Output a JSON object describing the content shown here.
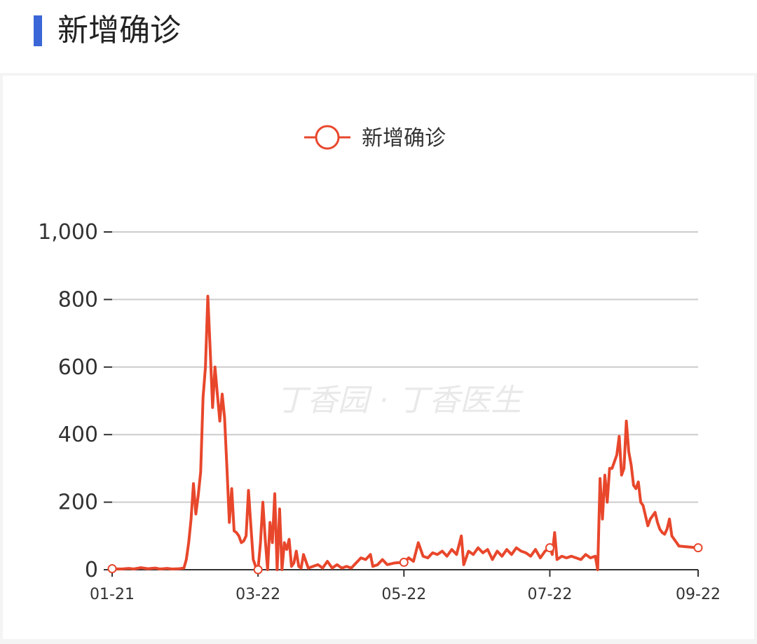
{
  "header": {
    "title": "新增确诊"
  },
  "watermark": "丁香园 · 丁香医生",
  "colors": {
    "accent_bar": "#3b66d8",
    "series": "#e8472c",
    "grid": "#cccccc"
  },
  "chart_data": {
    "type": "line",
    "title": "",
    "legend": {
      "entries": [
        "新增确诊"
      ],
      "placement": "top-center"
    },
    "xlabel": "",
    "ylabel": "",
    "x_range": [
      "01-21",
      "09-22"
    ],
    "x_ticks": [
      "01-21",
      "03-22",
      "05-22",
      "07-22",
      "09-22"
    ],
    "ylim": [
      0,
      1000
    ],
    "y_ticks": [
      "0",
      "200",
      "400",
      "600",
      "800",
      "1,000"
    ],
    "grid": true,
    "series": [
      {
        "name": "新增确诊",
        "color": "#e8472c",
        "points": [
          [
            "01-21",
            3
          ],
          [
            "01-25",
            2
          ],
          [
            "01-28",
            4
          ],
          [
            "01-30",
            2
          ],
          [
            "02-02",
            6
          ],
          [
            "02-05",
            3
          ],
          [
            "02-08",
            5
          ],
          [
            "02-10",
            2
          ],
          [
            "02-13",
            4
          ],
          [
            "02-15",
            2
          ],
          [
            "02-18",
            3
          ],
          [
            "02-20",
            5
          ],
          [
            "02-21",
            30
          ],
          [
            "02-22",
            80
          ],
          [
            "02-23",
            150
          ],
          [
            "02-24",
            255
          ],
          [
            "02-25",
            165
          ],
          [
            "02-26",
            220
          ],
          [
            "02-27",
            290
          ],
          [
            "02-28",
            510
          ],
          [
            "02-29",
            600
          ],
          [
            "03-01",
            810
          ],
          [
            "03-02",
            650
          ],
          [
            "03-03",
            480
          ],
          [
            "03-04",
            600
          ],
          [
            "03-05",
            520
          ],
          [
            "03-06",
            440
          ],
          [
            "03-07",
            520
          ],
          [
            "03-08",
            450
          ],
          [
            "03-09",
            300
          ],
          [
            "03-10",
            140
          ],
          [
            "03-11",
            240
          ],
          [
            "03-12",
            115
          ],
          [
            "03-13",
            110
          ],
          [
            "03-14",
            100
          ],
          [
            "03-15",
            80
          ],
          [
            "03-16",
            85
          ],
          [
            "03-17",
            100
          ],
          [
            "03-18",
            235
          ],
          [
            "03-19",
            130
          ],
          [
            "03-20",
            30
          ],
          [
            "03-21",
            10
          ],
          [
            "03-22",
            0
          ],
          [
            "03-23",
            80
          ],
          [
            "03-24",
            200
          ],
          [
            "03-25",
            90
          ],
          [
            "03-26",
            0
          ],
          [
            "03-27",
            140
          ],
          [
            "03-28",
            80
          ],
          [
            "03-29",
            225
          ],
          [
            "03-30",
            0
          ],
          [
            "03-31",
            180
          ],
          [
            "04-01",
            0
          ],
          [
            "04-02",
            80
          ],
          [
            "04-03",
            60
          ],
          [
            "04-04",
            90
          ],
          [
            "04-05",
            10
          ],
          [
            "04-06",
            20
          ],
          [
            "04-07",
            55
          ],
          [
            "04-08",
            10
          ],
          [
            "04-09",
            5
          ],
          [
            "04-10",
            45
          ],
          [
            "04-12",
            5
          ],
          [
            "04-14",
            10
          ],
          [
            "04-16",
            15
          ],
          [
            "04-18",
            5
          ],
          [
            "04-20",
            25
          ],
          [
            "04-22",
            5
          ],
          [
            "04-24",
            15
          ],
          [
            "04-26",
            5
          ],
          [
            "04-28",
            10
          ],
          [
            "04-30",
            5
          ],
          [
            "05-02",
            20
          ],
          [
            "05-04",
            35
          ],
          [
            "05-06",
            30
          ],
          [
            "05-08",
            45
          ],
          [
            "05-09",
            10
          ],
          [
            "05-11",
            15
          ],
          [
            "05-13",
            30
          ],
          [
            "05-15",
            15
          ],
          [
            "05-18",
            20
          ],
          [
            "05-22",
            22
          ],
          [
            "05-24",
            35
          ],
          [
            "05-26",
            25
          ],
          [
            "05-28",
            80
          ],
          [
            "05-30",
            40
          ],
          [
            "06-01",
            35
          ],
          [
            "06-03",
            50
          ],
          [
            "06-05",
            45
          ],
          [
            "06-07",
            55
          ],
          [
            "06-09",
            40
          ],
          [
            "06-11",
            60
          ],
          [
            "06-13",
            45
          ],
          [
            "06-15",
            100
          ],
          [
            "06-16",
            15
          ],
          [
            "06-18",
            55
          ],
          [
            "06-20",
            45
          ],
          [
            "06-22",
            65
          ],
          [
            "06-24",
            50
          ],
          [
            "06-26",
            60
          ],
          [
            "06-28",
            30
          ],
          [
            "06-30",
            55
          ],
          [
            "07-02",
            40
          ],
          [
            "07-04",
            60
          ],
          [
            "07-06",
            45
          ],
          [
            "07-08",
            65
          ],
          [
            "07-10",
            55
          ],
          [
            "07-12",
            50
          ],
          [
            "07-14",
            40
          ],
          [
            "07-16",
            60
          ],
          [
            "07-18",
            35
          ],
          [
            "07-20",
            55
          ],
          [
            "07-22",
            65
          ],
          [
            "07-23",
            45
          ],
          [
            "07-24",
            110
          ],
          [
            "07-25",
            30
          ],
          [
            "07-27",
            40
          ],
          [
            "07-29",
            35
          ],
          [
            "07-31",
            40
          ],
          [
            "08-02",
            35
          ],
          [
            "08-04",
            30
          ],
          [
            "08-06",
            45
          ],
          [
            "08-08",
            35
          ],
          [
            "08-10",
            40
          ],
          [
            "08-11",
            0
          ],
          [
            "08-12",
            270
          ],
          [
            "08-13",
            150
          ],
          [
            "08-14",
            280
          ],
          [
            "08-15",
            200
          ],
          [
            "08-16",
            300
          ],
          [
            "08-17",
            300
          ],
          [
            "08-18",
            320
          ],
          [
            "08-19",
            340
          ],
          [
            "08-20",
            395
          ],
          [
            "08-21",
            280
          ],
          [
            "08-22",
            300
          ],
          [
            "08-23",
            440
          ],
          [
            "08-24",
            350
          ],
          [
            "08-25",
            310
          ],
          [
            "08-26",
            250
          ],
          [
            "08-27",
            240
          ],
          [
            "08-28",
            260
          ],
          [
            "08-29",
            200
          ],
          [
            "08-30",
            190
          ],
          [
            "08-31",
            160
          ],
          [
            "09-01",
            130
          ],
          [
            "09-02",
            150
          ],
          [
            "09-03",
            160
          ],
          [
            "09-04",
            170
          ],
          [
            "09-05",
            140
          ],
          [
            "09-06",
            120
          ],
          [
            "09-07",
            110
          ],
          [
            "09-08",
            105
          ],
          [
            "09-09",
            120
          ],
          [
            "09-10",
            150
          ],
          [
            "09-11",
            100
          ],
          [
            "09-12",
            90
          ],
          [
            "09-13",
            80
          ],
          [
            "09-14",
            70
          ],
          [
            "09-22",
            65
          ]
        ],
        "markers": [
          "01-21",
          "03-22",
          "05-22",
          "07-22",
          "09-22"
        ]
      }
    ]
  }
}
